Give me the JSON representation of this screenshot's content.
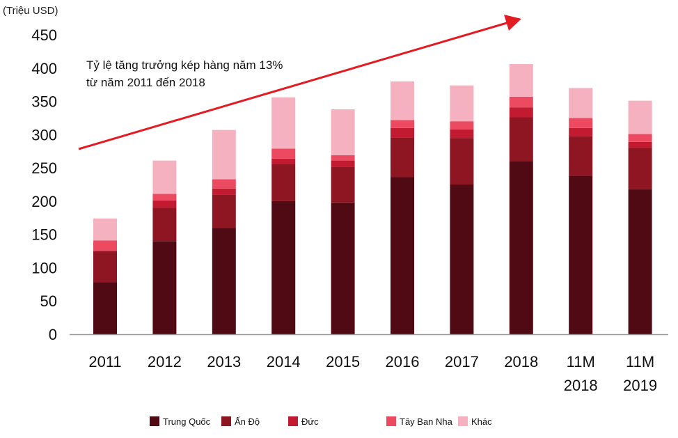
{
  "colors": {
    "trung_quoc": "#4f0a14",
    "an_do": "#8e1522",
    "duc": "#c21a30",
    "tay_ban_nha": "#ec4a60",
    "khac": "#f5b1bf",
    "arrow": "#e31b23",
    "axis": "#999999"
  },
  "chart_data": {
    "type": "bar",
    "stacked": true,
    "ylabel": "(Triệu USD)",
    "ylim": [
      0,
      450
    ],
    "yticks": [
      "0",
      "50",
      "100",
      "150",
      "200",
      "250",
      "300",
      "350",
      "400",
      "450"
    ],
    "categories": [
      [
        "2011"
      ],
      [
        "2012"
      ],
      [
        "2013"
      ],
      [
        "2014"
      ],
      [
        "2015"
      ],
      [
        "2016"
      ],
      [
        "2017"
      ],
      [
        "2018"
      ],
      [
        "11M",
        "2018"
      ],
      [
        "11M",
        "2019"
      ]
    ],
    "series": [
      {
        "name": "Trung Quốc",
        "color_key": "trung_quoc",
        "values": [
          78,
          140,
          160,
          200,
          198,
          236,
          225,
          260,
          238,
          218
        ]
      },
      {
        "name": "Ấn Độ",
        "color_key": "an_do",
        "values": [
          47,
          50,
          50,
          56,
          54,
          60,
          70,
          66,
          60,
          62
        ]
      },
      {
        "name": "Đức",
        "color_key": "duc",
        "values": [
          0,
          11,
          9,
          8,
          9,
          14,
          13,
          15,
          12,
          9
        ]
      },
      {
        "name": "Tây Ban Nha",
        "color_key": "tay_ban_nha",
        "values": [
          16,
          10,
          14,
          15,
          8,
          12,
          12,
          16,
          15,
          12
        ]
      },
      {
        "name": "Khác",
        "color_key": "khac",
        "values": [
          33,
          50,
          74,
          77,
          69,
          58,
          54,
          49,
          45,
          50
        ]
      }
    ],
    "annotation": {
      "lines": [
        "Tỷ lệ tăng trưởng kép hàng năm 13%",
        "từ năm 2011 đến 2018"
      ]
    },
    "legend": {
      "position": "bottom",
      "items": [
        "Trung Quốc",
        "Ấn Độ",
        "Đức",
        "Tây Ban Nha",
        "Khác"
      ]
    }
  }
}
